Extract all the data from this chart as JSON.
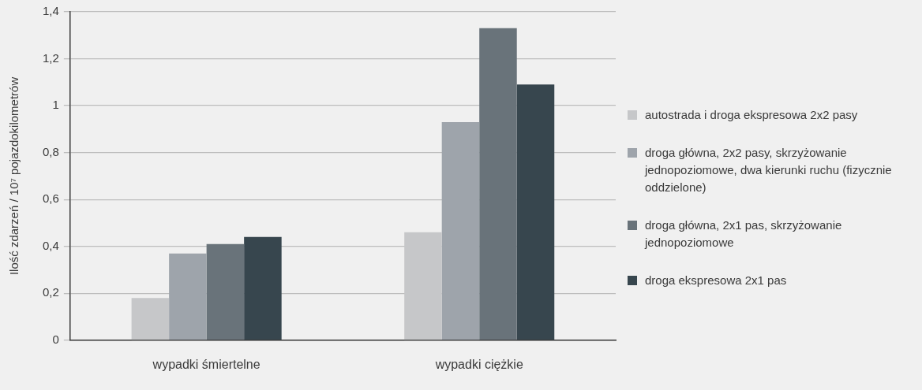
{
  "chart_data": {
    "type": "bar",
    "ylabel": "Ilość zdarzeń / 10⁷ pojazdokilometrów",
    "categories": [
      "wypadki śmiertelne",
      "wypadki ciężkie"
    ],
    "series": [
      {
        "name": "autostrada i droga ekspresowa 2x2 pasy",
        "color": "#c6c7c9",
        "values": [
          0.18,
          0.46
        ]
      },
      {
        "name": "droga główna, 2x2 pasy, skrzyżowanie jednopoziomowe, dwa kierunki ruchu (fizycznie oddzielone)",
        "color": "#9ea4ab",
        "values": [
          0.37,
          0.93
        ]
      },
      {
        "name": "droga główna, 2x1 pas, skrzyżowanie jednopoziomowe",
        "color": "#69737a",
        "values": [
          0.41,
          1.33
        ]
      },
      {
        "name": "droga ekspresowa 2x1 pas",
        "color": "#37464e",
        "values": [
          0.44,
          1.09
        ]
      }
    ],
    "ylim": [
      0,
      1.4
    ],
    "yticks": [
      0,
      {
        "value": 0.2,
        "label": "0,2"
      },
      {
        "value": 0.4,
        "label": "0,4"
      },
      {
        "value": 0.6,
        "label": "0,6"
      },
      {
        "value": 0.8,
        "label": "0,8"
      },
      1,
      {
        "value": 1.2,
        "label": "1,2"
      },
      {
        "value": 1.4,
        "label": "1,4"
      }
    ],
    "grid": "y",
    "legend": "right"
  }
}
